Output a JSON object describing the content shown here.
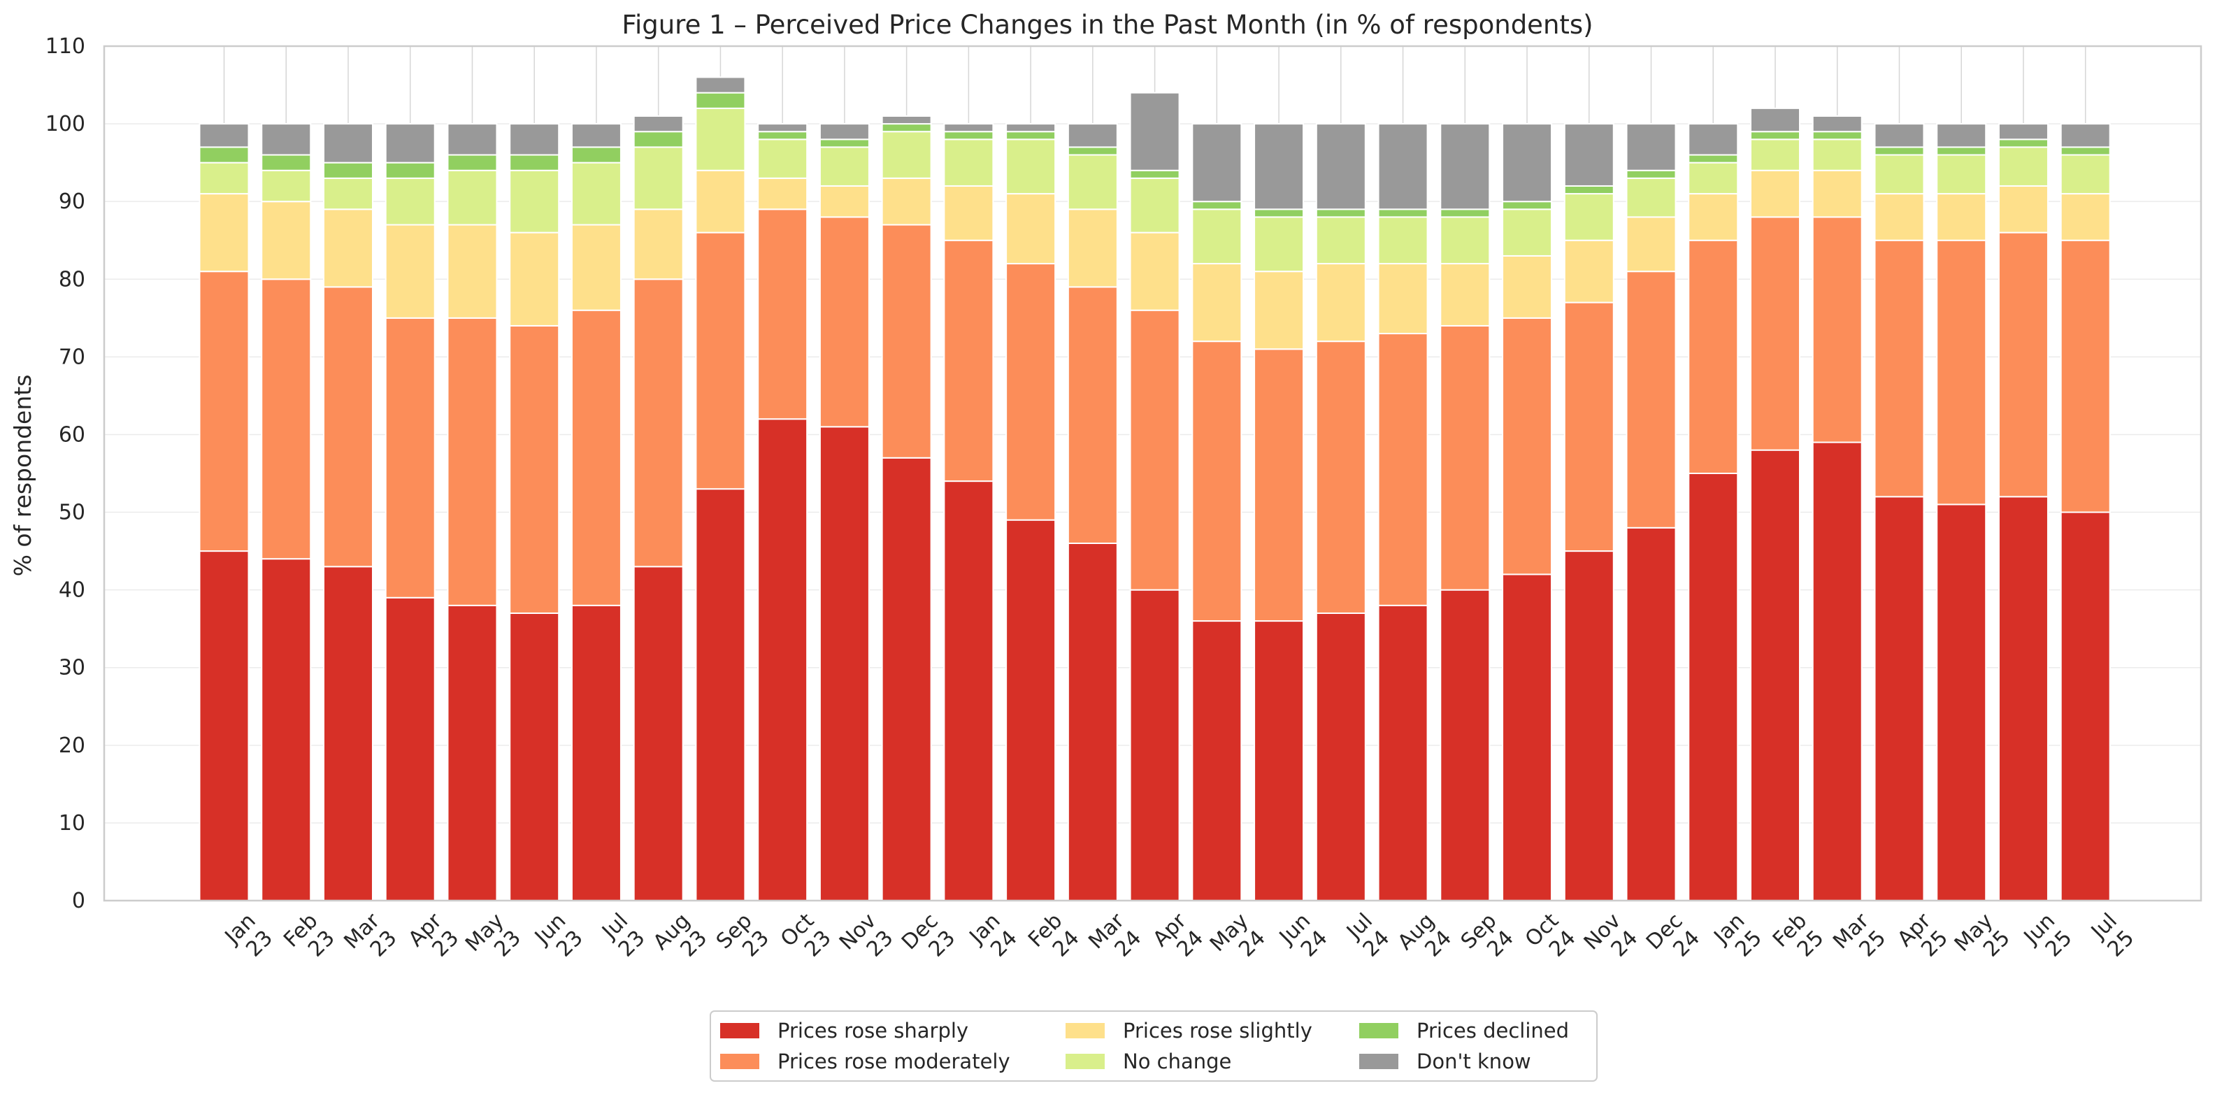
{
  "chart_data": {
    "type": "bar",
    "stacked": true,
    "title": "Figure 1 – Perceived Price Changes in the Past Month (in % of respondents)",
    "xlabel": "",
    "ylabel": "% of respondents",
    "ylim": [
      0,
      110
    ],
    "yticks": [
      0,
      10,
      20,
      30,
      40,
      50,
      60,
      70,
      80,
      90,
      100,
      110
    ],
    "grid": true,
    "legend_position": "bottom-center",
    "categories": [
      [
        "Jan",
        "23"
      ],
      [
        "Feb",
        "23"
      ],
      [
        "Mar",
        "23"
      ],
      [
        "Apr",
        "23"
      ],
      [
        "May",
        "23"
      ],
      [
        "Jun",
        "23"
      ],
      [
        "Jul",
        "23"
      ],
      [
        "Aug",
        "23"
      ],
      [
        "Sep",
        "23"
      ],
      [
        "Oct",
        "23"
      ],
      [
        "Nov",
        "23"
      ],
      [
        "Dec",
        "23"
      ],
      [
        "Jan",
        "24"
      ],
      [
        "Feb",
        "24"
      ],
      [
        "Mar",
        "24"
      ],
      [
        "Apr",
        "24"
      ],
      [
        "May",
        "24"
      ],
      [
        "Jun",
        "24"
      ],
      [
        "Jul",
        "24"
      ],
      [
        "Aug",
        "24"
      ],
      [
        "Sep",
        "24"
      ],
      [
        "Oct",
        "24"
      ],
      [
        "Nov",
        "24"
      ],
      [
        "Dec",
        "24"
      ],
      [
        "Jan",
        "25"
      ],
      [
        "Feb",
        "25"
      ],
      [
        "Mar",
        "25"
      ],
      [
        "Apr",
        "25"
      ],
      [
        "May",
        "25"
      ],
      [
        "Jun",
        "25"
      ],
      [
        "Jul",
        "25"
      ]
    ],
    "series": [
      {
        "name": "Prices rose sharply",
        "color": "#d73027",
        "values": [
          45,
          44,
          43,
          39,
          38,
          37,
          38,
          43,
          53,
          62,
          61,
          57,
          54,
          49,
          46,
          40,
          36,
          36,
          37,
          38,
          40,
          42,
          45,
          48,
          55,
          58,
          59,
          52,
          51,
          52,
          50
        ]
      },
      {
        "name": "Prices rose moderately",
        "color": "#fc8d59",
        "values": [
          36,
          36,
          36,
          36,
          37,
          37,
          38,
          37,
          33,
          27,
          27,
          30,
          31,
          33,
          33,
          36,
          36,
          35,
          35,
          35,
          34,
          33,
          32,
          33,
          30,
          30,
          29,
          33,
          34,
          34,
          35
        ]
      },
      {
        "name": "Prices rose slightly",
        "color": "#fee08b",
        "values": [
          10,
          10,
          10,
          12,
          12,
          12,
          11,
          9,
          8,
          4,
          4,
          6,
          7,
          9,
          10,
          10,
          10,
          10,
          10,
          9,
          8,
          8,
          8,
          7,
          6,
          6,
          6,
          6,
          6,
          6,
          6
        ]
      },
      {
        "name": "No change",
        "color": "#d9ef8b",
        "values": [
          4,
          4,
          4,
          6,
          7,
          8,
          8,
          8,
          8,
          5,
          5,
          6,
          6,
          7,
          7,
          7,
          7,
          7,
          6,
          6,
          6,
          6,
          6,
          5,
          4,
          4,
          4,
          5,
          5,
          5,
          5
        ]
      },
      {
        "name": "Prices declined",
        "color": "#91cf60",
        "values": [
          2,
          2,
          2,
          2,
          2,
          2,
          2,
          2,
          2,
          1,
          1,
          1,
          1,
          1,
          1,
          1,
          1,
          1,
          1,
          1,
          1,
          1,
          1,
          1,
          1,
          1,
          1,
          1,
          1,
          1,
          1
        ]
      },
      {
        "name": "Don't know",
        "color": "#999999",
        "values": [
          3,
          4,
          5,
          5,
          4,
          4,
          3,
          2,
          2,
          1,
          2,
          1,
          1,
          1,
          3,
          10,
          10,
          11,
          11,
          11,
          11,
          10,
          8,
          6,
          4,
          3,
          2,
          3,
          3,
          2,
          3
        ]
      }
    ]
  }
}
